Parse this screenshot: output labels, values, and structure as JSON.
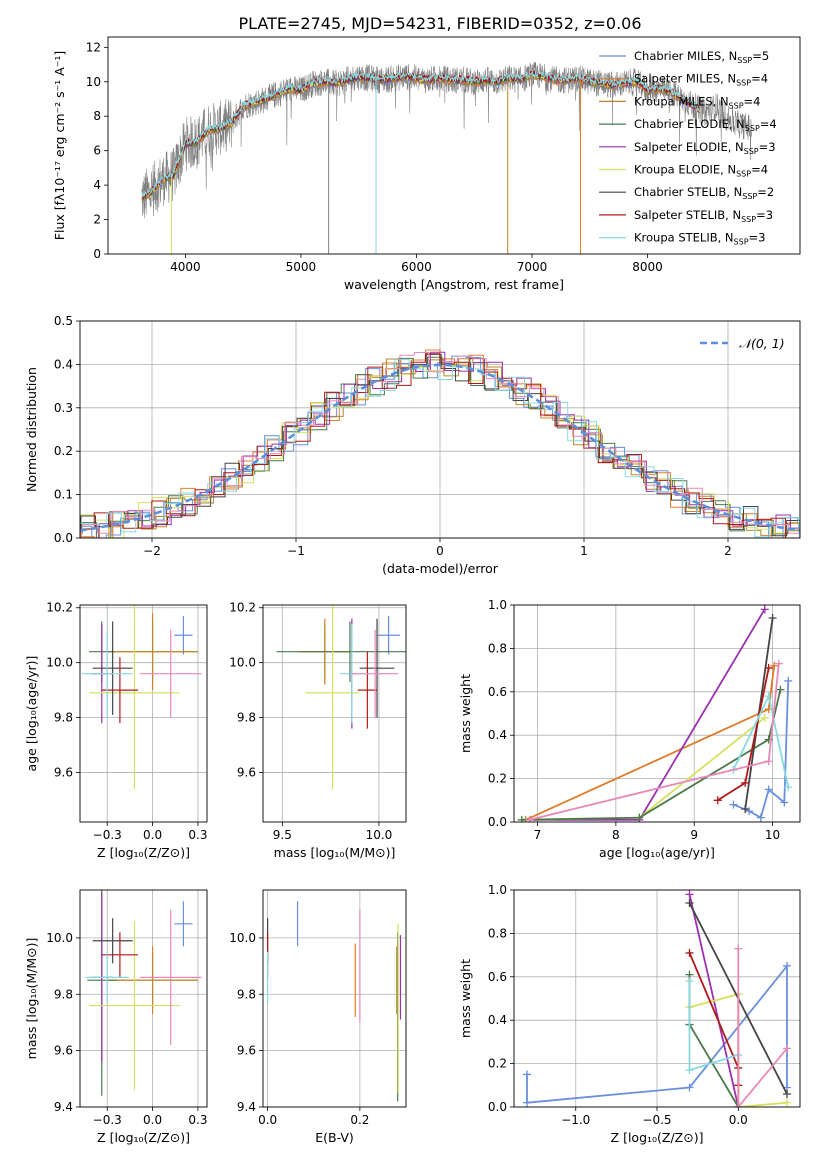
{
  "figure": {
    "title": "PLATE=2745, MJD=54231, FIBERID=0352, z=0.06"
  },
  "chart_data": [
    {
      "id": "spectrum",
      "type": "line",
      "title": "PLATE=2745, MJD=54231, FIBERID=0352, z=0.06",
      "xlabel": "wavelength [Angstrom, rest frame]",
      "ylabel": "Flux [fλ10⁻¹⁷ erg cm⁻² s⁻¹ A⁻¹]",
      "xlim": [
        3330,
        9320
      ],
      "ylim": [
        0,
        12.6
      ],
      "xticks": [
        4000,
        5000,
        6000,
        7000,
        8000
      ],
      "yticks": [
        0,
        2,
        4,
        6,
        8,
        10,
        12
      ],
      "grid": false,
      "legend_position": "upper right",
      "legend": [
        {
          "name": "Chabrier MILES",
          "nssp": "5",
          "color": "#6a8fdc"
        },
        {
          "name": "Salpeter MILES",
          "nssp": "4",
          "color": "#e07b2a"
        },
        {
          "name": "Kroupa MILES",
          "nssp": "4",
          "color": "#b8862b"
        },
        {
          "name": "Chabrier ELODIE",
          "nssp": "4",
          "color": "#4a7a4a"
        },
        {
          "name": "Salpeter ELODIE",
          "nssp": "3",
          "color": "#9b30b0"
        },
        {
          "name": "Kroupa ELODIE",
          "nssp": "4",
          "color": "#d6e060"
        },
        {
          "name": "Chabrier STELIB",
          "nssp": "2",
          "color": "#444444"
        },
        {
          "name": "Salpeter STELIB",
          "nssp": "3",
          "color": "#b01818"
        },
        {
          "name": "Kroupa STELIB",
          "nssp": "3",
          "color": "#88d8e0"
        }
      ],
      "observed_color": "#808080",
      "continuum_x": [
        3620,
        3700,
        3800,
        3900,
        4000,
        4100,
        4200,
        4300,
        4400,
        4500,
        4600,
        4700,
        4800,
        4900,
        5000,
        5100,
        5200,
        5300,
        5400,
        5500,
        5600,
        5700,
        5800,
        5900,
        6000,
        6100,
        6200,
        6300,
        6400,
        6500,
        6600,
        6700,
        6800,
        6900,
        7000,
        7100,
        7200,
        7300,
        7400,
        7500,
        7600,
        7700,
        7800,
        7900,
        8000,
        8100,
        8200,
        8300,
        8400,
        8500,
        8600,
        8700,
        8800,
        8900
      ],
      "continuum_y": [
        3.2,
        3.6,
        4.3,
        4.6,
        6.4,
        6.5,
        7.2,
        7.3,
        7.6,
        8.6,
        8.8,
        9.0,
        9.3,
        9.6,
        9.5,
        9.9,
        10.0,
        9.9,
        10.1,
        10.3,
        10.2,
        10.1,
        10.2,
        10.3,
        10.2,
        10.1,
        10.2,
        10.1,
        10.1,
        10.0,
        10.1,
        10.0,
        10.2,
        10.1,
        10.4,
        10.3,
        10.1,
        10.1,
        10.2,
        10.0,
        9.9,
        9.8,
        9.9,
        10.0,
        9.5,
        9.6,
        9.4,
        9.0,
        8.6,
        8.2,
        8.6,
        7.8,
        7.5,
        7.3
      ]
    },
    {
      "id": "residuals",
      "type": "line",
      "xlabel": "(data-model)/error",
      "ylabel": "Normed distribution",
      "xlim": [
        -2.5,
        2.5
      ],
      "ylim": [
        0,
        0.5
      ],
      "xticks": [
        -2,
        -1,
        0,
        1,
        2
      ],
      "yticks": [
        0.0,
        0.1,
        0.2,
        0.3,
        0.4,
        0.5
      ],
      "grid": true,
      "legend": [
        "𝒩(0, 1)"
      ],
      "legend_position": "upper right",
      "histogram_bins": 50
    },
    {
      "id": "age-vs-Z",
      "type": "scatter",
      "xlabel": "Z [log₁₀(Z/Z⊙)]",
      "ylabel": "age [log₁₀(age/yr)]",
      "xlim": [
        -0.4,
        0.3
      ],
      "ylim": [
        9.42,
        10.21
      ],
      "xticks": [
        -0.25,
        0.0,
        0.25
      ],
      "yticks": [
        9.6,
        9.8,
        10.0,
        10.2
      ],
      "grid": true,
      "points": [
        {
          "x": 0.17,
          "y": 10.1,
          "xerr": 0.05,
          "yerr": 0.07,
          "color": "#6a8fdc"
        },
        {
          "x": 0.0,
          "y": 10.04,
          "xerr": 0.25,
          "yerr": 0.14,
          "color": "#e07b2a"
        },
        {
          "x": 0.0,
          "y": 10.04,
          "xerr": 0.25,
          "yerr": 0.12,
          "color": "#b8862b"
        },
        {
          "x": -0.28,
          "y": 10.04,
          "xerr": 0.07,
          "yerr": 0.11,
          "color": "#4a7a4a"
        },
        {
          "x": -0.28,
          "y": 9.96,
          "xerr": 0.06,
          "yerr": 0.18,
          "color": "#9b30b0"
        },
        {
          "x": -0.1,
          "y": 9.89,
          "xerr": 0.25,
          "yerr": 0.35,
          "color": "#d6e060"
        },
        {
          "x": -0.22,
          "y": 9.98,
          "xerr": 0.11,
          "yerr": 0.17,
          "color": "#444444"
        },
        {
          "x": -0.18,
          "y": 9.9,
          "xerr": 0.1,
          "yerr": 0.12,
          "color": "#b01818"
        },
        {
          "x": -0.25,
          "y": 9.96,
          "xerr": 0.14,
          "yerr": 0.16,
          "color": "#88d8e0"
        },
        {
          "x": 0.1,
          "y": 9.96,
          "xerr": 0.17,
          "yerr": 0.16,
          "color": "#e888b8"
        }
      ]
    },
    {
      "id": "age-vs-mass",
      "type": "scatter",
      "xlabel": "mass [log₁₀(M/M⊙)]",
      "xlim": [
        9.4,
        10.14
      ],
      "ylim": [
        9.42,
        10.21
      ],
      "xticks": [
        9.5,
        10.0
      ],
      "yticks": [
        9.6,
        9.8,
        10.0,
        10.2
      ],
      "grid": true,
      "points": [
        {
          "x": 10.05,
          "y": 10.1,
          "xerr": 0.06,
          "yerr": 0.07,
          "color": "#6a8fdc"
        },
        {
          "x": 9.72,
          "y": 10.04,
          "xerr": 0.12,
          "yerr": 0.12,
          "color": "#e07b2a"
        },
        {
          "x": 9.72,
          "y": 10.04,
          "xerr": 0.14,
          "yerr": 0.1,
          "color": "#b8862b"
        },
        {
          "x": 9.85,
          "y": 10.04,
          "xerr": 0.38,
          "yerr": 0.11,
          "color": "#4a7a4a"
        },
        {
          "x": 9.86,
          "y": 9.96,
          "xerr": 0.02,
          "yerr": 0.2,
          "color": "#9b30b0"
        },
        {
          "x": 9.76,
          "y": 9.89,
          "xerr": 0.14,
          "yerr": 0.35,
          "color": "#d6e060"
        },
        {
          "x": 9.99,
          "y": 9.98,
          "xerr": 0.09,
          "yerr": 0.18,
          "color": "#444444"
        },
        {
          "x": 9.94,
          "y": 9.9,
          "xerr": 0.05,
          "yerr": 0.14,
          "color": "#b01818"
        },
        {
          "x": 9.86,
          "y": 9.96,
          "xerr": 0.06,
          "yerr": 0.18,
          "color": "#88d8e0"
        },
        {
          "x": 9.98,
          "y": 9.96,
          "xerr": 0.12,
          "yerr": 0.16,
          "color": "#e888b8"
        }
      ]
    },
    {
      "id": "mass-weight-vs-age",
      "type": "line",
      "xlabel": "age [log₁₀(age/yr)]",
      "ylabel": "mass weight",
      "xlim": [
        6.7,
        10.35
      ],
      "ylim": [
        0,
        1
      ],
      "xticks": [
        7,
        8,
        9,
        10
      ],
      "yticks": [
        0.0,
        0.2,
        0.4,
        0.6,
        0.8,
        1.0
      ],
      "grid": true,
      "series": [
        {
          "color": "#6a8fdc",
          "x": [
            9.5,
            9.7,
            9.85,
            9.95,
            10.15,
            10.2
          ],
          "y": [
            0.08,
            0.05,
            0.02,
            0.15,
            0.09,
            0.65
          ]
        },
        {
          "color": "#e07b2a",
          "x": [
            6.85,
            9.95,
            10.02
          ],
          "y": [
            0.01,
            0.52,
            0.72
          ]
        },
        {
          "color": "#9b30b0",
          "x": [
            6.9,
            8.3,
            9.9
          ],
          "y": [
            0.01,
            0.01,
            0.98
          ]
        },
        {
          "color": "#d6e060",
          "x": [
            6.8,
            8.3,
            9.9
          ],
          "y": [
            0.01,
            0.02,
            0.48
          ]
        },
        {
          "color": "#4a7a4a",
          "x": [
            6.8,
            8.3,
            9.95,
            10.1
          ],
          "y": [
            0.01,
            0.02,
            0.38,
            0.61
          ]
        },
        {
          "color": "#444444",
          "x": [
            9.65,
            10.0
          ],
          "y": [
            0.06,
            0.94
          ]
        },
        {
          "color": "#b01818",
          "x": [
            9.3,
            9.65,
            9.95
          ],
          "y": [
            0.1,
            0.18,
            0.71
          ]
        },
        {
          "color": "#88d8e0",
          "x": [
            9.5,
            9.95,
            10.2
          ],
          "y": [
            0.24,
            0.58,
            0.16
          ]
        },
        {
          "color": "#e888b8",
          "x": [
            6.9,
            9.95,
            10.08
          ],
          "y": [
            0.01,
            0.28,
            0.73
          ]
        }
      ]
    },
    {
      "id": "mass-vs-Z",
      "type": "scatter",
      "xlabel": "Z [log₁₀(Z/Z⊙)]",
      "ylabel": "mass [log₁₀(M/M⊙)]",
      "xlim": [
        -0.4,
        0.3
      ],
      "ylim": [
        9.4,
        10.17
      ],
      "xticks": [
        -0.25,
        0.0,
        0.25
      ],
      "yticks": [
        9.4,
        9.6,
        9.8,
        10.0
      ],
      "grid": true,
      "points": [
        {
          "x": 0.17,
          "y": 10.05,
          "xerr": 0.05,
          "yerr": 0.08,
          "color": "#6a8fdc"
        },
        {
          "x": 0.0,
          "y": 9.85,
          "xerr": 0.25,
          "yerr": 0.12,
          "color": "#e07b2a"
        },
        {
          "x": 0.0,
          "y": 9.85,
          "xerr": 0.25,
          "yerr": 0.1,
          "color": "#b8862b"
        },
        {
          "x": -0.28,
          "y": 9.85,
          "xerr": 0.08,
          "yerr": 0.41,
          "color": "#4a7a4a"
        },
        {
          "x": -0.28,
          "y": 9.86,
          "xerr": 0.06,
          "yerr": 0.3,
          "color": "#9b30b0"
        },
        {
          "x": -0.1,
          "y": 9.76,
          "xerr": 0.25,
          "yerr": 0.3,
          "color": "#d6e060"
        },
        {
          "x": -0.22,
          "y": 9.99,
          "xerr": 0.11,
          "yerr": 0.08,
          "color": "#444444"
        },
        {
          "x": -0.18,
          "y": 9.94,
          "xerr": 0.1,
          "yerr": 0.08,
          "color": "#b01818"
        },
        {
          "x": -0.25,
          "y": 9.86,
          "xerr": 0.12,
          "yerr": 0.09,
          "color": "#88d8e0"
        },
        {
          "x": 0.1,
          "y": 9.86,
          "xerr": 0.17,
          "yerr": 0.24,
          "color": "#e888b8"
        }
      ]
    },
    {
      "id": "mass-vs-ebv",
      "type": "scatter",
      "xlabel": "E(B-V)",
      "xlim": [
        -0.01,
        0.3
      ],
      "ylim": [
        9.4,
        10.17
      ],
      "xticks": [
        0.0,
        0.2
      ],
      "yticks": [
        9.4,
        9.6,
        9.8,
        10.0
      ],
      "grid": true,
      "points": [
        {
          "x": 0.065,
          "y": 10.05,
          "yerr": 0.08,
          "color": "#6a8fdc"
        },
        {
          "x": 0.19,
          "y": 9.85,
          "yerr": 0.13,
          "color": "#e07b2a"
        },
        {
          "x": 0.28,
          "y": 9.85,
          "yerr": 0.12,
          "color": "#b8862b"
        },
        {
          "x": 0.282,
          "y": 9.72,
          "yerr": 0.3,
          "color": "#4a7a4a"
        },
        {
          "x": 0.288,
          "y": 9.86,
          "yerr": 0.15,
          "color": "#9b30b0"
        },
        {
          "x": 0.283,
          "y": 9.75,
          "yerr": 0.3,
          "color": "#d6e060"
        },
        {
          "x": 0.0,
          "y": 9.99,
          "yerr": 0.08,
          "color": "#444444"
        },
        {
          "x": 0.0,
          "y": 9.94,
          "yerr": 0.08,
          "color": "#b01818"
        },
        {
          "x": 0.0,
          "y": 9.86,
          "yerr": 0.09,
          "color": "#88d8e0"
        },
        {
          "x": 0.2,
          "y": 9.9,
          "yerr": 0.2,
          "color": "#e888b8"
        }
      ]
    },
    {
      "id": "mass-weight-vs-Z",
      "type": "line",
      "xlabel": "Z [log₁₀(Z/Z⊙)]",
      "ylabel": "mass weight",
      "xlim": [
        -1.38,
        0.38
      ],
      "ylim": [
        0,
        1
      ],
      "xticks": [
        -1.0,
        -0.5,
        0.0
      ],
      "yticks": [
        0.0,
        0.2,
        0.4,
        0.6,
        0.8,
        1.0
      ],
      "grid": true,
      "series": [
        {
          "color": "#6a8fdc",
          "x": [
            -1.3,
            -1.3,
            -0.3,
            0.3,
            0.3
          ],
          "y": [
            0.15,
            0.02,
            0.09,
            0.65,
            0.09
          ]
        },
        {
          "color": "#e07b2a",
          "x": [
            0.0,
            0.0
          ],
          "y": [
            0.52,
            0.0
          ]
        },
        {
          "color": "#9b30b0",
          "x": [
            -0.3,
            0.0
          ],
          "y": [
            0.98,
            0.0
          ]
        },
        {
          "color": "#d6e060",
          "x": [
            -0.3,
            0.0,
            0.0,
            0.3
          ],
          "y": [
            0.46,
            0.52,
            0.0,
            0.02
          ]
        },
        {
          "color": "#4a7a4a",
          "x": [
            -0.3,
            -0.3,
            0.0
          ],
          "y": [
            0.61,
            0.38,
            0.0
          ]
        },
        {
          "color": "#444444",
          "x": [
            -0.3,
            0.3
          ],
          "y": [
            0.94,
            0.06
          ]
        },
        {
          "color": "#b01818",
          "x": [
            -0.3,
            0.0,
            0.0
          ],
          "y": [
            0.71,
            0.18,
            0.1
          ]
        },
        {
          "color": "#88d8e0",
          "x": [
            -0.3,
            -0.3,
            0.0
          ],
          "y": [
            0.58,
            0.17,
            0.24
          ]
        },
        {
          "color": "#e888b8",
          "x": [
            0.0,
            0.0,
            0.3
          ],
          "y": [
            0.73,
            0.0,
            0.27
          ]
        }
      ]
    }
  ]
}
